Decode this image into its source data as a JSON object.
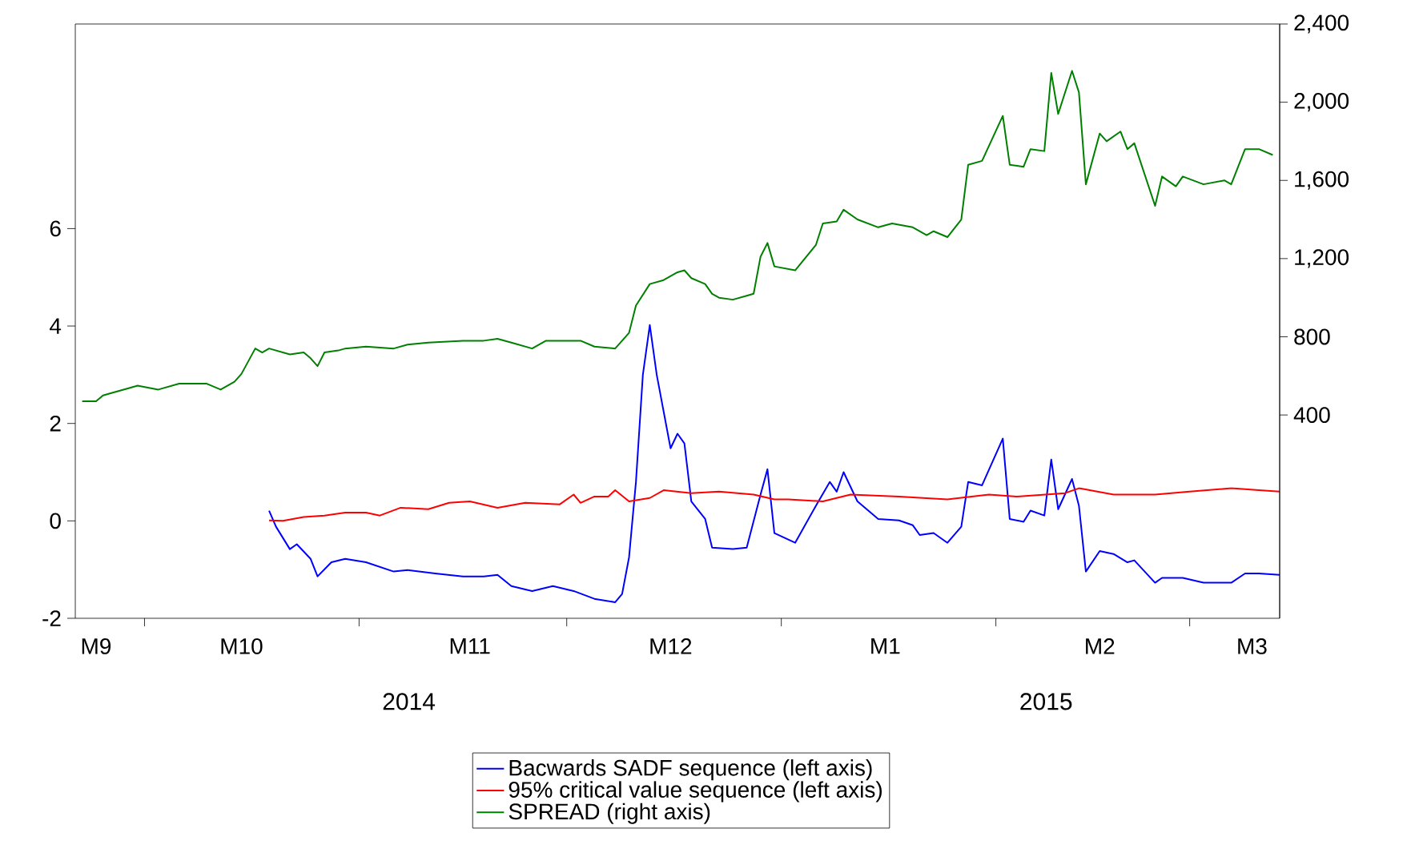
{
  "chart_data": {
    "type": "line",
    "line_style": "solid",
    "legend": "bottom",
    "annotations": [
      "2014",
      "2015"
    ],
    "xlim": [
      "2014-09-21",
      "2015-03-14"
    ],
    "xticks": [
      {
        "value": "2014-09-24",
        "label": "M9"
      },
      {
        "value": "2014-10-01",
        "label": null
      },
      {
        "value": "2014-10-15",
        "label": "M10"
      },
      {
        "value": "2014-11-01",
        "label": null
      },
      {
        "value": "2014-11-17",
        "label": "M11"
      },
      {
        "value": "2014-12-01",
        "label": null
      },
      {
        "value": "2014-12-16",
        "label": "M12"
      },
      {
        "value": "2015-01-01",
        "label": null
      },
      {
        "value": "2015-01-16",
        "label": "M1"
      },
      {
        "value": "2015-02-01",
        "label": null
      },
      {
        "value": "2015-02-16",
        "label": "M2"
      },
      {
        "value": "2015-03-01",
        "label": null
      },
      {
        "value": "2015-03-10",
        "label": "M3"
      }
    ],
    "ylim": [
      -2,
      10.2
    ],
    "yticks": [
      -2,
      0,
      2,
      4,
      6
    ],
    "y2lim": [
      -640,
      2400
    ],
    "y2ticks": [
      {
        "value": 400,
        "label": "400"
      },
      {
        "value": 800,
        "label": "800"
      },
      {
        "value": 1200,
        "label": "1,200"
      },
      {
        "value": 1600,
        "label": "1,600"
      },
      {
        "value": 2000,
        "label": "2,000"
      },
      {
        "value": 2400,
        "label": "2,400"
      }
    ],
    "series": [
      {
        "name": "Bacwards SADF sequence (left axis)",
        "color": "#0000ff",
        "x": [
          "2014-10-19",
          "2014-10-20",
          "2014-10-22",
          "2014-10-23",
          "2014-10-25",
          "2014-10-26",
          "2014-10-28",
          "2014-10-30",
          "2014-11-02",
          "2014-11-06",
          "2014-11-08",
          "2014-11-12",
          "2014-11-16",
          "2014-11-19",
          "2014-11-21",
          "2014-11-23",
          "2014-11-26",
          "2014-11-29",
          "2014-12-02",
          "2014-12-05",
          "2014-12-08",
          "2014-12-09",
          "2014-12-10",
          "2014-12-11",
          "2014-12-12",
          "2014-12-13",
          "2014-12-14",
          "2014-12-16",
          "2014-12-17",
          "2014-12-18",
          "2014-12-19",
          "2014-12-21",
          "2014-12-22",
          "2014-12-25",
          "2014-12-27",
          "2014-12-29",
          "2014-12-30",
          "2014-12-31",
          "2015-01-03",
          "2015-01-06",
          "2015-01-08",
          "2015-01-09",
          "2015-01-10",
          "2015-01-12",
          "2015-01-15",
          "2015-01-18",
          "2015-01-20",
          "2015-01-21",
          "2015-01-23",
          "2015-01-25",
          "2015-01-27",
          "2015-01-28",
          "2015-01-30",
          "2015-02-02",
          "2015-02-03",
          "2015-02-05",
          "2015-02-06",
          "2015-02-08",
          "2015-02-09",
          "2015-02-10",
          "2015-02-12",
          "2015-02-13",
          "2015-02-14",
          "2015-02-16",
          "2015-02-18",
          "2015-02-20",
          "2015-02-21",
          "2015-02-24",
          "2015-02-25",
          "2015-02-28",
          "2015-03-03",
          "2015-03-07",
          "2015-03-09",
          "2015-03-11",
          "2015-03-14"
        ],
        "values": [
          0.21,
          -0.12,
          -0.58,
          -0.48,
          -0.78,
          -1.14,
          -0.85,
          -0.78,
          -0.85,
          -1.04,
          -1.01,
          -1.08,
          -1.14,
          -1.14,
          -1.11,
          -1.34,
          -1.44,
          -1.34,
          -1.44,
          -1.6,
          -1.67,
          -1.5,
          -0.75,
          0.8,
          3.0,
          4.02,
          3.0,
          1.49,
          1.79,
          1.59,
          0.4,
          0.04,
          -0.55,
          -0.58,
          -0.55,
          0.54,
          1.06,
          -0.25,
          -0.45,
          0.31,
          0.8,
          0.6,
          1.0,
          0.4,
          0.04,
          0.01,
          -0.09,
          -0.29,
          -0.25,
          -0.45,
          -0.12,
          0.8,
          0.73,
          1.69,
          0.04,
          -0.02,
          0.21,
          0.11,
          1.26,
          0.24,
          0.86,
          0.31,
          -1.04,
          -0.62,
          -0.68,
          -0.85,
          -0.81,
          -1.27,
          -1.17,
          -1.17,
          -1.27,
          -1.27,
          -1.08,
          -1.08,
          -1.11
        ]
      },
      {
        "name": "95% critical value sequence (left axis)",
        "color": "#ff0000",
        "x": [
          "2014-10-19",
          "2014-10-21",
          "2014-10-24",
          "2014-10-27",
          "2014-10-30",
          "2014-11-02",
          "2014-11-04",
          "2014-11-07",
          "2014-11-11",
          "2014-11-14",
          "2014-11-17",
          "2014-11-21",
          "2014-11-25",
          "2014-11-30",
          "2014-12-02",
          "2014-12-03",
          "2014-12-05",
          "2014-12-07",
          "2014-12-08",
          "2014-12-10",
          "2014-12-13",
          "2014-12-15",
          "2014-12-19",
          "2014-12-23",
          "2014-12-28",
          "2014-12-31",
          "2015-01-02",
          "2015-01-07",
          "2015-01-11",
          "2015-01-18",
          "2015-01-25",
          "2015-01-31",
          "2015-02-04",
          "2015-02-11",
          "2015-02-13",
          "2015-02-18",
          "2015-02-24",
          "2015-03-01",
          "2015-03-07",
          "2015-03-11",
          "2015-03-14"
        ],
        "values": [
          0.01,
          0.0,
          0.08,
          0.11,
          0.17,
          0.17,
          0.11,
          0.27,
          0.24,
          0.37,
          0.4,
          0.27,
          0.37,
          0.34,
          0.54,
          0.37,
          0.5,
          0.5,
          0.63,
          0.4,
          0.47,
          0.63,
          0.57,
          0.6,
          0.54,
          0.44,
          0.44,
          0.4,
          0.54,
          0.5,
          0.44,
          0.54,
          0.5,
          0.57,
          0.67,
          0.54,
          0.54,
          0.6,
          0.67,
          0.63,
          0.6
        ]
      },
      {
        "name": "SPREAD (right axis)",
        "color": "#008000",
        "axis": "y2",
        "x": [
          "2014-09-22",
          "2014-09-24",
          "2014-09-25",
          "2014-09-26",
          "2014-09-29",
          "2014-09-30",
          "2014-10-03",
          "2014-10-06",
          "2014-10-08",
          "2014-10-10",
          "2014-10-12",
          "2014-10-14",
          "2014-10-15",
          "2014-10-17",
          "2014-10-18",
          "2014-10-19",
          "2014-10-22",
          "2014-10-24",
          "2014-10-25",
          "2014-10-26",
          "2014-10-27",
          "2014-10-29",
          "2014-10-30",
          "2014-11-02",
          "2014-11-06",
          "2014-11-08",
          "2014-11-11",
          "2014-11-16",
          "2014-11-19",
          "2014-11-21",
          "2014-11-23",
          "2014-11-26",
          "2014-11-28",
          "2014-11-30",
          "2014-12-03",
          "2014-12-05",
          "2014-12-08",
          "2014-12-10",
          "2014-12-11",
          "2014-12-13",
          "2014-12-15",
          "2014-12-17",
          "2014-12-18",
          "2014-12-19",
          "2014-12-21",
          "2014-12-22",
          "2014-12-23",
          "2014-12-25",
          "2014-12-27",
          "2014-12-28",
          "2014-12-29",
          "2014-12-30",
          "2014-12-31",
          "2015-01-03",
          "2015-01-06",
          "2015-01-07",
          "2015-01-09",
          "2015-01-10",
          "2015-01-12",
          "2015-01-15",
          "2015-01-17",
          "2015-01-20",
          "2015-01-22",
          "2015-01-23",
          "2015-01-25",
          "2015-01-27",
          "2015-01-28",
          "2015-01-30",
          "2015-02-02",
          "2015-02-03",
          "2015-02-05",
          "2015-02-06",
          "2015-02-08",
          "2015-02-09",
          "2015-02-10",
          "2015-02-12",
          "2015-02-13",
          "2015-02-14",
          "2015-02-16",
          "2015-02-17",
          "2015-02-19",
          "2015-02-20",
          "2015-02-21",
          "2015-02-24",
          "2015-02-25",
          "2015-02-27",
          "2015-02-28",
          "2015-03-03",
          "2015-03-06",
          "2015-03-07",
          "2015-03-09",
          "2015-03-11",
          "2015-03-13"
        ],
        "values": [
          470,
          470,
          500,
          510,
          540,
          550,
          530,
          560,
          560,
          560,
          530,
          570,
          610,
          740,
          720,
          740,
          710,
          720,
          690,
          650,
          720,
          730,
          740,
          750,
          740,
          760,
          770,
          780,
          780,
          790,
          770,
          740,
          780,
          780,
          780,
          750,
          740,
          820,
          960,
          1070,
          1090,
          1130,
          1140,
          1100,
          1070,
          1020,
          1000,
          990,
          1010,
          1020,
          1210,
          1280,
          1160,
          1140,
          1270,
          1380,
          1390,
          1450,
          1400,
          1360,
          1380,
          1360,
          1320,
          1340,
          1310,
          1400,
          1680,
          1700,
          1930,
          1680,
          1670,
          1760,
          1750,
          2150,
          1940,
          2160,
          2050,
          1580,
          1840,
          1800,
          1850,
          1760,
          1790,
          1470,
          1620,
          1570,
          1620,
          1580,
          1600,
          1580,
          1760,
          1760,
          1730
        ]
      }
    ]
  }
}
